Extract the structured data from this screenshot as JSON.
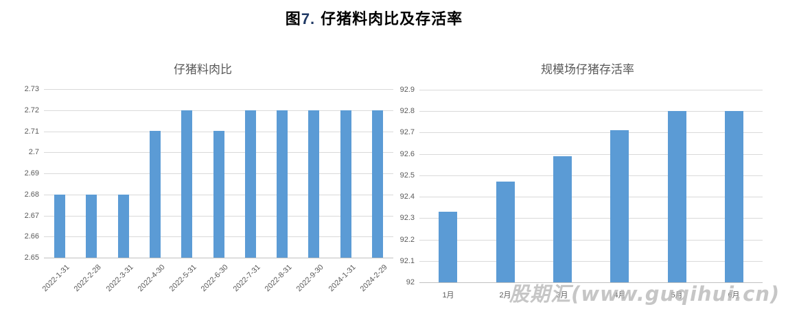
{
  "header": {
    "figure_label": "图",
    "figure_number": "7.",
    "title": "仔猪料肉比及存活率"
  },
  "watermark": "股期汇(www.guqihui.cn)",
  "colors": {
    "bar_fill": "#5B9BD5",
    "gridline": "#D9D9D9",
    "axis_line": "#BFBFBF",
    "tick_text": "#595959",
    "chart_title_text": "#595959",
    "main_title_text": "#000000",
    "figure_number_text": "#1F3864",
    "watermark_text": "#B9B9B9"
  },
  "chart_data": [
    {
      "type": "bar",
      "title": "仔猪料肉比",
      "categories": [
        "2022-1-31",
        "2022-2-28",
        "2022-3-31",
        "2022-4-30",
        "2022-5-31",
        "2022-6-30",
        "2022-7-31",
        "2022-8-31",
        "2022-9-30",
        "2024-1-31",
        "2024-2-29"
      ],
      "values": [
        2.68,
        2.68,
        2.68,
        2.71,
        2.72,
        2.71,
        2.72,
        2.72,
        2.72,
        2.72,
        2.72
      ],
      "xlabel": "",
      "ylabel": "",
      "ylim": [
        2.65,
        2.73
      ],
      "ytick_labels": [
        "2.73",
        "2.72",
        "2.71",
        "2.7",
        "2.69",
        "2.68",
        "2.67",
        "2.66",
        "2.65"
      ],
      "grid": true,
      "legend": false
    },
    {
      "type": "bar",
      "title": "规模场仔猪存活率",
      "categories": [
        "1月",
        "2月",
        "3月",
        "4月",
        "5月",
        "6月"
      ],
      "values": [
        92.33,
        92.47,
        92.59,
        92.71,
        92.8,
        92.8
      ],
      "xlabel": "",
      "ylabel": "",
      "ylim": [
        92,
        92.9
      ],
      "ytick_labels": [
        "92.9",
        "92.8",
        "92.7",
        "92.6",
        "92.5",
        "92.4",
        "92.3",
        "92.2",
        "92.1",
        "92"
      ],
      "grid": true,
      "legend": false
    }
  ]
}
